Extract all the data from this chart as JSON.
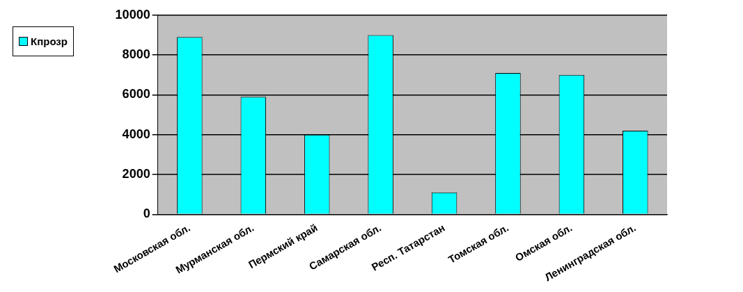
{
  "chart_data": {
    "type": "bar",
    "categories": [
      "Московская обл.",
      "Мурманская обл.",
      "Пермский край",
      "Самарская обл.",
      "Респ. Татарстан",
      "Томская обл.",
      "Омская обл.",
      "Ленинградская обл."
    ],
    "series": [
      {
        "name": "Кпрозр",
        "color": "#00ffff",
        "values": [
          8900,
          5900,
          4000,
          9000,
          1100,
          7100,
          7000,
          4200
        ]
      }
    ],
    "ylim": [
      0,
      10000
    ],
    "yticks": [
      0,
      2000,
      4000,
      6000,
      8000,
      10000
    ],
    "grid": "y",
    "legend": "top left"
  }
}
